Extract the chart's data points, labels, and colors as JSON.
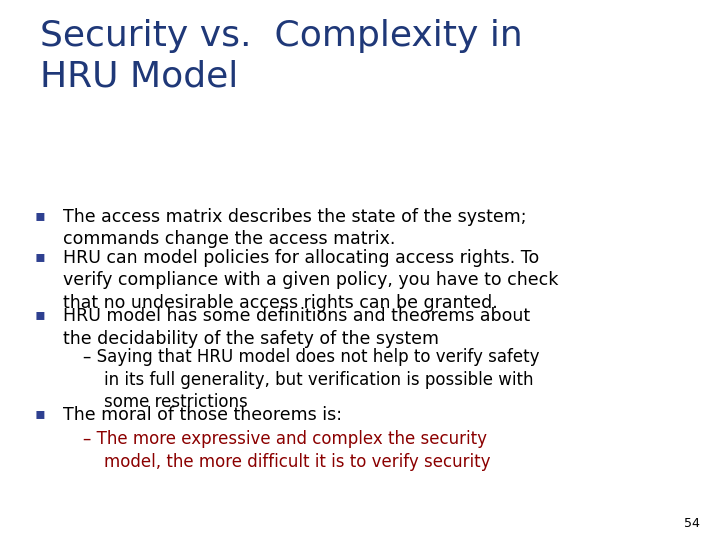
{
  "title_line1": "Security vs.  Complexity in",
  "title_line2": "HRU Model",
  "title_color": "#1F3878",
  "background_color": "#FFFFFF",
  "slide_number": "54",
  "bullets": [
    {
      "level": 1,
      "text": "The access matrix describes the state of the system;\ncommands change the access matrix.",
      "color": "#000000",
      "lines": 2
    },
    {
      "level": 1,
      "text": "HRU can model policies for allocating access rights. To\nverify compliance with a given policy, you have to check\nthat no undesirable access rights can be granted.",
      "color": "#000000",
      "lines": 3
    },
    {
      "level": 1,
      "text": "HRU model has some definitions and theorems about\nthe decidability of the safety of the system",
      "color": "#000000",
      "lines": 2
    },
    {
      "level": 2,
      "text": "– Saying that HRU model does not help to verify safety\n    in its full generality, but verification is possible with\n    some restrictions",
      "color": "#000000",
      "lines": 3
    },
    {
      "level": 1,
      "text": "The moral of those theorems is:",
      "color": "#000000",
      "lines": 1
    },
    {
      "level": 2,
      "text": "– The more expressive and complex the security\n    model, the more difficult it is to verify security",
      "color": "#8B0000",
      "lines": 2
    }
  ],
  "bullet_color": "#2E4090",
  "font_size_title": 26,
  "font_size_body": 12.5,
  "font_size_sub": 12.0,
  "font_size_slide_num": 9
}
